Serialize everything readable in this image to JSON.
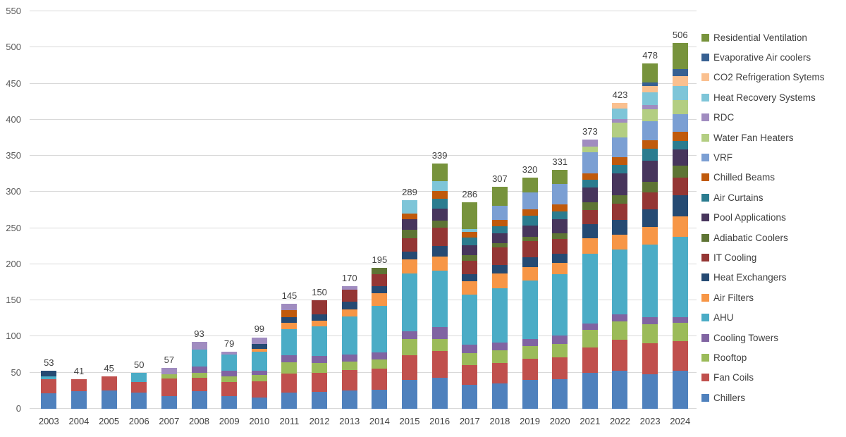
{
  "colors": {
    "background": "#ffffff",
    "gridline": "#d9d9d9",
    "axis_text": "#595959",
    "label_text": "#404040"
  },
  "chart_data": {
    "type": "bar",
    "stacked": true,
    "title": "",
    "xlabel": "",
    "ylabel": "",
    "ylim": [
      0,
      550
    ],
    "ytick_step": 50,
    "grid": true,
    "legend_position": "right",
    "categories": [
      "2003",
      "2004",
      "2005",
      "2006",
      "2007",
      "2008",
      "2009",
      "2010",
      "2011",
      "2012",
      "2013",
      "2014",
      "2015",
      "2016",
      "2017",
      "2018",
      "2019",
      "2020",
      "2021",
      "2022",
      "2023",
      "2024"
    ],
    "totals": [
      53,
      41,
      45,
      50,
      57,
      93,
      79,
      99,
      145,
      150,
      170,
      195,
      289,
      339,
      286,
      307,
      320,
      331,
      373,
      423,
      478,
      506
    ],
    "series": [
      {
        "name": "Chillers",
        "color": "#4f81bd",
        "values": [
          21,
          24,
          25,
          22,
          18,
          24,
          18,
          16,
          22,
          23,
          25,
          26,
          40,
          43,
          33,
          35,
          40,
          41,
          50,
          53,
          48,
          53
        ]
      },
      {
        "name": "Fan Coils",
        "color": "#c0504d",
        "values": [
          20,
          17,
          20,
          15,
          24,
          19,
          19,
          22,
          27,
          27,
          29,
          30,
          34,
          37,
          27,
          28,
          29,
          30,
          35,
          43,
          43,
          41
        ]
      },
      {
        "name": "Rooftop",
        "color": "#9bbb59",
        "values": [
          0,
          0,
          0,
          0,
          6,
          7,
          8,
          9,
          15,
          13,
          11,
          12,
          23,
          17,
          17,
          18,
          18,
          19,
          24,
          25,
          26,
          25
        ]
      },
      {
        "name": "Cooling Towers",
        "color": "#8064a2",
        "values": [
          0,
          0,
          0,
          0,
          0,
          9,
          8,
          6,
          10,
          10,
          10,
          10,
          10,
          16,
          12,
          11,
          10,
          11,
          9,
          10,
          10,
          8
        ]
      },
      {
        "name": "AHU",
        "color": "#4bacc6",
        "values": [
          4,
          0,
          0,
          13,
          0,
          23,
          22,
          26,
          36,
          41,
          53,
          64,
          80,
          78,
          69,
          75,
          81,
          85,
          97,
          89,
          100,
          111
        ]
      },
      {
        "name": "Air Filters",
        "color": "#f79646",
        "values": [
          0,
          0,
          0,
          0,
          0,
          0,
          0,
          4,
          9,
          8,
          10,
          18,
          20,
          20,
          19,
          20,
          18,
          16,
          21,
          21,
          25,
          28
        ]
      },
      {
        "name": "Heat Exchangers",
        "color": "#254a73",
        "values": [
          8,
          0,
          0,
          0,
          0,
          0,
          0,
          7,
          8,
          9,
          10,
          10,
          11,
          14,
          9,
          12,
          14,
          13,
          20,
          20,
          24,
          30
        ]
      },
      {
        "name": "IT Cooling",
        "color": "#943634",
        "values": [
          0,
          0,
          0,
          0,
          0,
          0,
          0,
          0,
          0,
          19,
          17,
          16,
          18,
          26,
          19,
          24,
          22,
          20,
          19,
          23,
          23,
          24
        ]
      },
      {
        "name": "Adiabatic Coolers",
        "color": "#5e7434",
        "values": [
          0,
          0,
          0,
          0,
          0,
          0,
          0,
          0,
          0,
          0,
          0,
          9,
          12,
          9,
          8,
          6,
          6,
          8,
          11,
          12,
          15,
          17
        ]
      },
      {
        "name": "Pool Applications",
        "color": "#47355c",
        "values": [
          0,
          0,
          0,
          0,
          0,
          0,
          0,
          0,
          0,
          0,
          0,
          0,
          14,
          17,
          13,
          14,
          16,
          19,
          20,
          30,
          29,
          22
        ]
      },
      {
        "name": "Air Curtains",
        "color": "#2b7c8f",
        "values": [
          0,
          0,
          0,
          0,
          0,
          0,
          0,
          0,
          0,
          0,
          0,
          0,
          0,
          14,
          11,
          10,
          13,
          11,
          11,
          12,
          17,
          12
        ]
      },
      {
        "name": "Chilled Beams",
        "color": "#c05a0c",
        "values": [
          0,
          0,
          0,
          0,
          0,
          0,
          0,
          0,
          10,
          0,
          0,
          0,
          8,
          10,
          8,
          8,
          9,
          10,
          9,
          10,
          12,
          12
        ]
      },
      {
        "name": "VRF",
        "color": "#7b9fd3",
        "values": [
          0,
          0,
          0,
          0,
          0,
          0,
          0,
          0,
          0,
          0,
          0,
          0,
          0,
          0,
          0,
          20,
          23,
          28,
          29,
          28,
          26,
          25
        ]
      },
      {
        "name": "Water Fan Heaters",
        "color": "#b3ce82",
        "values": [
          0,
          0,
          0,
          0,
          0,
          0,
          0,
          0,
          0,
          0,
          0,
          0,
          0,
          0,
          0,
          0,
          0,
          0,
          8,
          20,
          17,
          19
        ]
      },
      {
        "name": "RDC",
        "color": "#a08cc0",
        "values": [
          0,
          0,
          0,
          0,
          9,
          11,
          4,
          9,
          8,
          0,
          5,
          0,
          0,
          0,
          0,
          0,
          0,
          0,
          10,
          5,
          5,
          0
        ]
      },
      {
        "name": "Heat Recovery Systems",
        "color": "#7ec5d8",
        "values": [
          0,
          0,
          0,
          0,
          0,
          0,
          0,
          0,
          0,
          0,
          0,
          0,
          19,
          14,
          4,
          0,
          0,
          0,
          0,
          15,
          18,
          20
        ]
      },
      {
        "name": "CO2 Refrigeration Sytems",
        "color": "#fac08f",
        "values": [
          0,
          0,
          0,
          0,
          0,
          0,
          0,
          0,
          0,
          0,
          0,
          0,
          0,
          0,
          0,
          0,
          0,
          0,
          0,
          7,
          9,
          13
        ]
      },
      {
        "name": "Evaporative Air coolers",
        "color": "#376092",
        "values": [
          0,
          0,
          0,
          0,
          0,
          0,
          0,
          0,
          0,
          0,
          0,
          0,
          0,
          0,
          0,
          0,
          0,
          0,
          0,
          0,
          5,
          10
        ]
      },
      {
        "name": "Residential Ventilation",
        "color": "#77933c",
        "values": [
          0,
          0,
          0,
          0,
          0,
          0,
          0,
          0,
          0,
          0,
          0,
          0,
          0,
          24,
          37,
          26,
          21,
          20,
          0,
          0,
          26,
          36
        ]
      }
    ]
  }
}
